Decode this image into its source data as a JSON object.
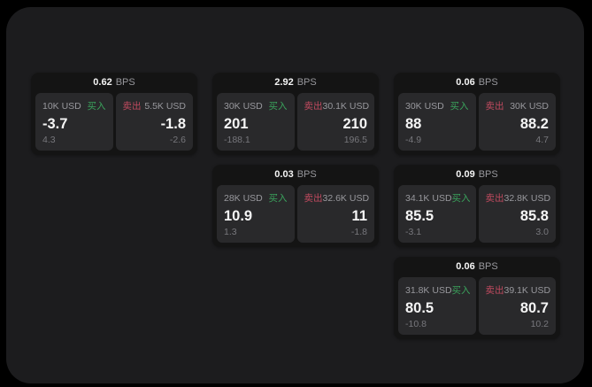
{
  "labels": {
    "buy": "买入",
    "sell": "卖出",
    "bps_suffix": "BPS"
  },
  "colors": {
    "background": "#000000",
    "frame": "#1c1c1e",
    "card": "#141414",
    "panel": "#29292b",
    "buy_green": "#3aa35c",
    "sell_red": "#c04a5f",
    "text_primary": "#f5f5f5",
    "text_secondary": "#98989d",
    "text_muted": "#77777c"
  },
  "cards": [
    {
      "bps": "0.62",
      "row": 1,
      "col": 1,
      "buy": {
        "amount": "10K USD",
        "value": "-3.7",
        "sub": "4.3"
      },
      "sell": {
        "amount": "5.5K USD",
        "value": "-1.8",
        "sub": "-2.6"
      }
    },
    {
      "bps": "2.92",
      "row": 1,
      "col": 2,
      "buy": {
        "amount": "30K USD",
        "value": "201",
        "sub": "-188.1"
      },
      "sell": {
        "amount": "30.1K USD",
        "value": "210",
        "sub": "196.5"
      }
    },
    {
      "bps": "0.06",
      "row": 1,
      "col": 3,
      "buy": {
        "amount": "30K USD",
        "value": "88",
        "sub": "-4.9"
      },
      "sell": {
        "amount": "30K USD",
        "value": "88.2",
        "sub": "4.7"
      }
    },
    {
      "bps": "0.03",
      "row": 2,
      "col": 2,
      "buy": {
        "amount": "28K USD",
        "value": "10.9",
        "sub": "1.3"
      },
      "sell": {
        "amount": "32.6K USD",
        "value": "11",
        "sub": "-1.8"
      }
    },
    {
      "bps": "0.09",
      "row": 2,
      "col": 3,
      "buy": {
        "amount": "34.1K USD",
        "value": "85.5",
        "sub": "-3.1"
      },
      "sell": {
        "amount": "32.8K USD",
        "value": "85.8",
        "sub": "3.0"
      }
    },
    {
      "bps": "0.06",
      "row": 3,
      "col": 3,
      "buy": {
        "amount": "31.8K USD",
        "value": "80.5",
        "sub": "-10.8"
      },
      "sell": {
        "amount": "39.1K USD",
        "value": "80.7",
        "sub": "10.2"
      }
    }
  ]
}
